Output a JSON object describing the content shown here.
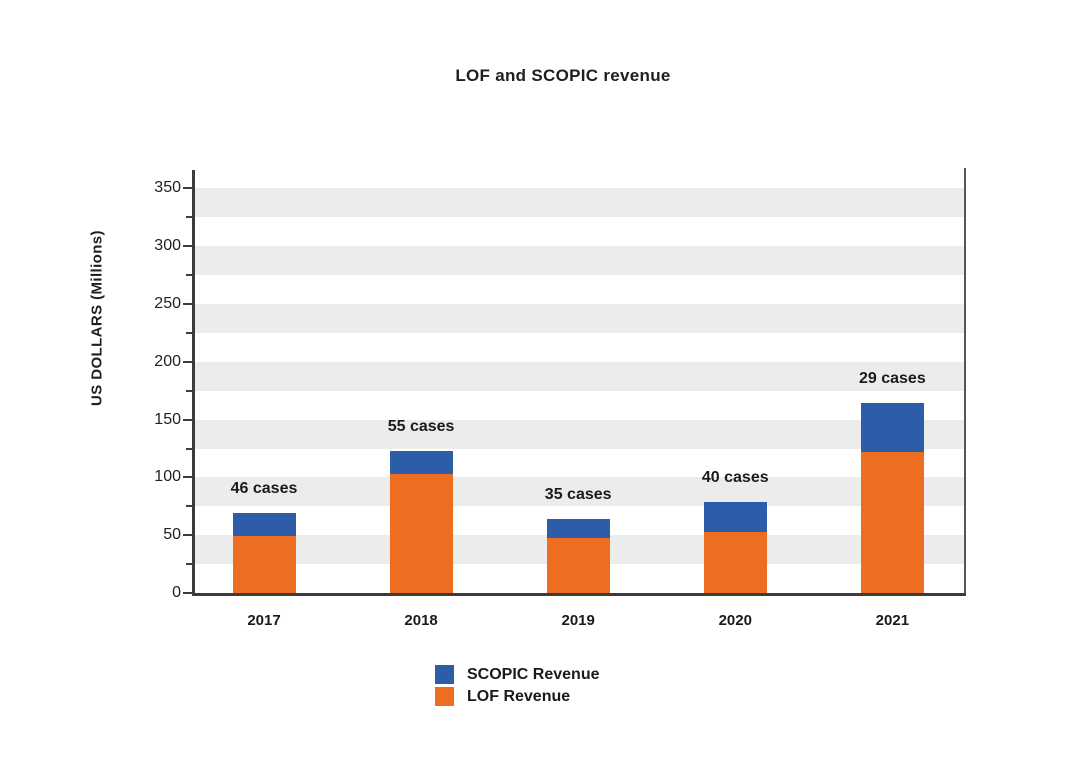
{
  "chart_data": {
    "type": "bar",
    "stacked": true,
    "title": "LOF and SCOPIC revenue",
    "xlabel": "",
    "ylabel": "US DOLLARS (Millions)",
    "categories": [
      "2017",
      "2018",
      "2019",
      "2020",
      "2021"
    ],
    "series": [
      {
        "name": "LOF Revenue",
        "color": "#ED6E21",
        "values": [
          49,
          103,
          48,
          53,
          122
        ]
      },
      {
        "name": "SCOPIC Revenue",
        "color": "#2D5CA8",
        "values": [
          20,
          20,
          16,
          26,
          42
        ]
      }
    ],
    "stack_totals": [
      69,
      123,
      64,
      79,
      164
    ],
    "annotations": [
      "46 cases",
      "55 cases",
      "35 cases",
      "40 cases",
      "29 cases"
    ],
    "ylim": [
      0,
      366
    ],
    "yticks_major": [
      0,
      50,
      100,
      150,
      200,
      250,
      300,
      350
    ],
    "ytick_labels": [
      "0",
      "50",
      "100",
      "150",
      "200",
      "250",
      "300",
      "350"
    ],
    "ytick_minor_step": 25,
    "grid": "alternating-horizontal-bands",
    "band_color": "#ececec",
    "band_step": 25,
    "legend_position": "bottom-center",
    "legend_order": [
      "SCOPIC Revenue",
      "LOF Revenue"
    ],
    "axis_color": "#3c3c3c",
    "background_color": "#ffffff"
  }
}
